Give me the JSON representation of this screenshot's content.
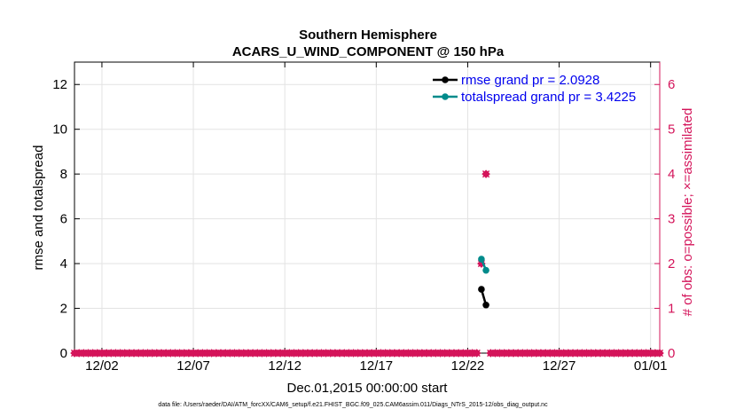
{
  "chart_data": {
    "type": "line",
    "title": "Southern Hemisphere",
    "subtitle": "ACARS_U_WIND_COMPONENT @ 150 hPa",
    "xlabel": "Dec.01,2015 00:00:00 start",
    "ylabel": "rmse and totalspread",
    "ylabel_right": "# of obs: o=possible; ×=assimilated",
    "x_ticks": [
      "12/02",
      "12/07",
      "12/12",
      "12/17",
      "12/22",
      "12/27",
      "01/01"
    ],
    "x_tick_days": [
      2,
      7,
      12,
      17,
      22,
      27,
      32
    ],
    "xlim": [
      0.5,
      32.5
    ],
    "ylim": [
      0,
      13
    ],
    "y_ticks": [
      "0",
      "2",
      "4",
      "6",
      "8",
      "10",
      "12"
    ],
    "y_tick_values": [
      0,
      2,
      4,
      6,
      8,
      10,
      12
    ],
    "ylim_right": [
      0,
      6.5
    ],
    "y_ticks_right": [
      "0",
      "1",
      "2",
      "3",
      "4",
      "5",
      "6"
    ],
    "y_tick_values_right": [
      0,
      1,
      2,
      3,
      4,
      5,
      6
    ],
    "grid": true,
    "legend_position": "top-right",
    "series": [
      {
        "name": "rmse grand pr = 2.0928",
        "color": "#000000",
        "x": [
          22.75,
          23.0
        ],
        "y": [
          2.85,
          2.15
        ]
      },
      {
        "name": "totalspread grand pr = 3.4225",
        "color": "#008b8b",
        "x": [
          22.75,
          23.0
        ],
        "y": [
          4.2,
          3.7
        ]
      }
    ],
    "obs_possible": {
      "color": "#d4145a",
      "x_start": 0.5,
      "x_end": 32.5,
      "x_step": 0.25,
      "nonzero": [
        {
          "x": 22.75,
          "count": 2
        },
        {
          "x": 23.0,
          "count": 4
        }
      ]
    },
    "obs_assimilated": {
      "color": "#d4145a",
      "nonzero": [
        {
          "x": 22.75,
          "count": 2
        },
        {
          "x": 23.0,
          "count": 4
        }
      ]
    }
  },
  "footer": "data file: /Users/raeder/DAI/ATM_forcXX/CAM6_setup/f.e21.FHIST_BGC.f09_025.CAM6assim.011/Diags_NTrS_2015-12/obs_diag_output.nc"
}
